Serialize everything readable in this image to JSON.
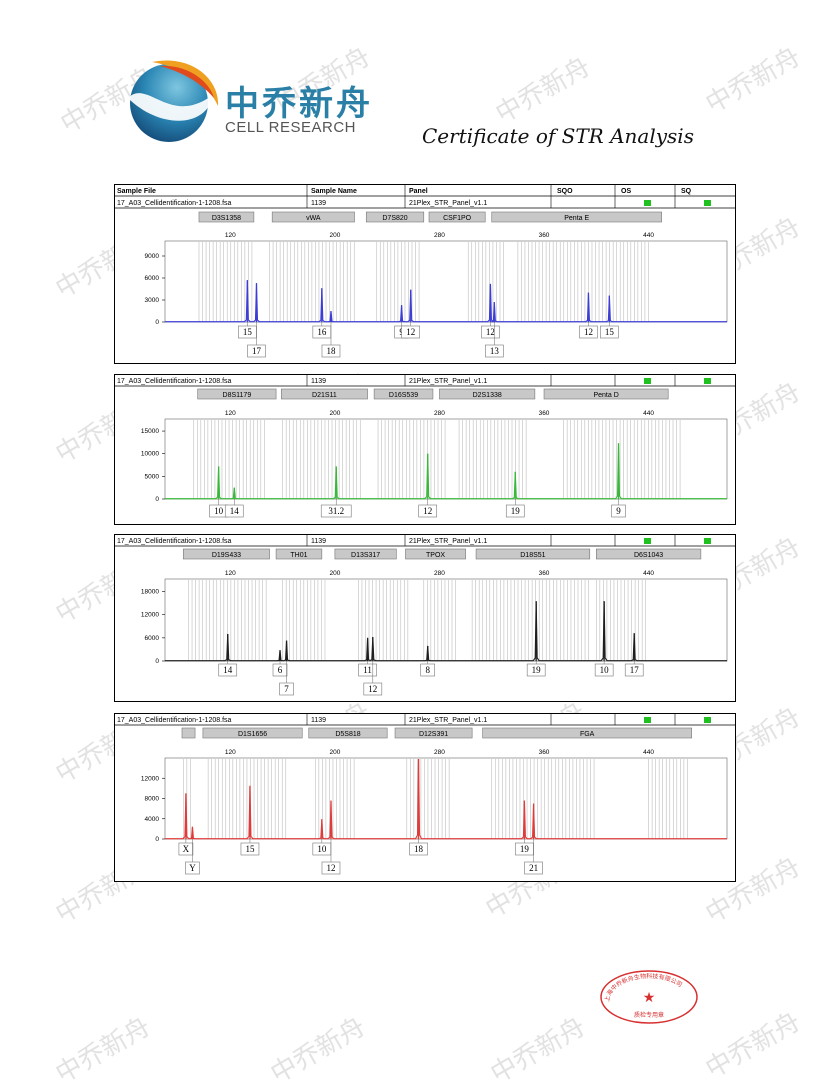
{
  "brand": {
    "name_cn": "中乔新舟",
    "name_en": "CELL RESEARCH",
    "watermark": "中乔新舟"
  },
  "certificate_title": "Certificate of STR Analysis",
  "header": {
    "sample_file": "Sample File",
    "sample_name": "Sample Name",
    "panel": "Panel",
    "sqo": "SQO",
    "os": "OS",
    "sq": "SQ"
  },
  "stamp_text": "上海中乔新舟生物科技有限公司 质检专用章",
  "chart_data": [
    {
      "type": "line",
      "color": "#3c3cd6",
      "file": "17_A03_Cellidentification-1-1208.fsa",
      "sample": "1139",
      "panel": "21Plex_STR_Panel_v1.1",
      "flags": [
        "#20c020",
        "#20c020"
      ],
      "xlim": [
        70,
        500
      ],
      "xticks": [
        120,
        200,
        280,
        360,
        440
      ],
      "ylim": [
        0,
        10500
      ],
      "yticks": [
        0,
        3000,
        6000,
        9000
      ],
      "loci": [
        {
          "name": "D3S1358",
          "x0": 96,
          "x1": 138
        },
        {
          "name": "vWA",
          "x0": 152,
          "x1": 215
        },
        {
          "name": "D7S820",
          "x0": 224,
          "x1": 268
        },
        {
          "name": "CSF1PO",
          "x0": 272,
          "x1": 315
        },
        {
          "name": "Penta E",
          "x0": 320,
          "x1": 450
        }
      ],
      "bins": [
        [
          96,
          137
        ],
        [
          150,
          216
        ],
        [
          232,
          265
        ],
        [
          302,
          329
        ],
        [
          340,
          440
        ]
      ],
      "peaks": [
        {
          "x": 133,
          "y": 5700,
          "allele": "15",
          "row": 1
        },
        {
          "x": 140,
          "y": 5300,
          "allele": "17",
          "row": 2
        },
        {
          "x": 190,
          "y": 4600,
          "allele": "16",
          "row": 1
        },
        {
          "x": 197,
          "y": 1500,
          "allele": "18",
          "row": 2
        },
        {
          "x": 251,
          "y": 2300,
          "allele": "9",
          "row": 1
        },
        {
          "x": 258,
          "y": 4400,
          "allele": "12",
          "row": 1
        },
        {
          "x": 319,
          "y": 5200,
          "allele": "12",
          "row": 1
        },
        {
          "x": 322,
          "y": 2700,
          "allele": "13",
          "row": 2
        },
        {
          "x": 394,
          "y": 4000,
          "allele": "12",
          "row": 1
        },
        {
          "x": 410,
          "y": 3600,
          "allele": "15",
          "row": 1
        }
      ]
    },
    {
      "type": "line",
      "color": "#38b838",
      "file": "17_A03_Cellidentification-1-1208.fsa",
      "sample": "1139",
      "panel": "21Plex_STR_Panel_v1.1",
      "flags": [
        "#20c020",
        "#20c020"
      ],
      "xlim": [
        70,
        500
      ],
      "xticks": [
        120,
        200,
        280,
        360,
        440
      ],
      "ylim": [
        0,
        17000
      ],
      "yticks": [
        0,
        5000,
        10000,
        15000
      ],
      "loci": [
        {
          "name": "D8S1179",
          "x0": 95,
          "x1": 155
        },
        {
          "name": "D21S11",
          "x0": 159,
          "x1": 225
        },
        {
          "name": "D16S539",
          "x0": 230,
          "x1": 275
        },
        {
          "name": "D2S1338",
          "x0": 280,
          "x1": 353
        },
        {
          "name": "Penta D",
          "x0": 360,
          "x1": 455
        }
      ],
      "bins": [
        [
          92,
          148
        ],
        [
          160,
          222
        ],
        [
          233,
          286
        ],
        [
          295,
          347
        ],
        [
          375,
          466
        ]
      ],
      "peaks": [
        {
          "x": 111,
          "y": 7200,
          "allele": "10",
          "row": 1
        },
        {
          "x": 123,
          "y": 2500,
          "allele": "14",
          "row": 1
        },
        {
          "x": 201,
          "y": 7200,
          "allele": "31.2",
          "row": 1
        },
        {
          "x": 271,
          "y": 10000,
          "allele": "12",
          "row": 1
        },
        {
          "x": 338,
          "y": 6000,
          "allele": "19",
          "row": 1
        },
        {
          "x": 417,
          "y": 12300,
          "allele": "9",
          "row": 1
        }
      ]
    },
    {
      "type": "line",
      "color": "#1e1e1e",
      "file": "17_A03_Cellidentification-1-1208.fsa",
      "sample": "1139",
      "panel": "21Plex_STR_Panel_v1.1",
      "flags": [
        "#20c020",
        "#20c020"
      ],
      "xlim": [
        70,
        500
      ],
      "xticks": [
        120,
        200,
        280,
        360,
        440
      ],
      "ylim": [
        0,
        21000
      ],
      "yticks": [
        0,
        6000,
        12000,
        18000
      ],
      "loci": [
        {
          "name": "D19S433",
          "x0": 84,
          "x1": 150
        },
        {
          "name": "TH01",
          "x0": 155,
          "x1": 190
        },
        {
          "name": "D13S317",
          "x0": 200,
          "x1": 247
        },
        {
          "name": "TPOX",
          "x0": 254,
          "x1": 300
        },
        {
          "name": "D18S51",
          "x0": 308,
          "x1": 395
        },
        {
          "name": "D6S1043",
          "x0": 400,
          "x1": 480
        }
      ],
      "bins": [
        [
          88,
          148
        ],
        [
          160,
          195
        ],
        [
          218,
          258
        ],
        [
          268,
          294
        ],
        [
          305,
          395
        ],
        [
          400,
          440
        ]
      ],
      "peaks": [
        {
          "x": 118,
          "y": 7000,
          "allele": "14",
          "row": 1
        },
        {
          "x": 158,
          "y": 2800,
          "allele": "6",
          "row": 1
        },
        {
          "x": 163,
          "y": 5300,
          "allele": "7",
          "row": 2
        },
        {
          "x": 225,
          "y": 6000,
          "allele": "11",
          "row": 1
        },
        {
          "x": 229,
          "y": 6200,
          "allele": "12",
          "row": 2
        },
        {
          "x": 271,
          "y": 3900,
          "allele": "8",
          "row": 1
        },
        {
          "x": 354,
          "y": 15500,
          "allele": "19",
          "row": 1
        },
        {
          "x": 406,
          "y": 15500,
          "allele": "10",
          "row": 1
        },
        {
          "x": 429,
          "y": 7200,
          "allele": "17",
          "row": 1
        }
      ]
    },
    {
      "type": "line",
      "color": "#e03a3a",
      "file": "17_A03_Cellidentification-1-1208.fsa",
      "sample": "1139",
      "panel": "21Plex_STR_Panel_v1.1",
      "flags": [
        "#20c020",
        "#20c020"
      ],
      "xlim": [
        70,
        500
      ],
      "xticks": [
        120,
        200,
        280,
        360,
        440
      ],
      "ylim": [
        0,
        16000
      ],
      "yticks": [
        0,
        4000,
        8000,
        12000
      ],
      "loci": [
        {
          "name": "",
          "x0": 83,
          "x1": 93
        },
        {
          "name": "D1S1656",
          "x0": 99,
          "x1": 175
        },
        {
          "name": "D5S818",
          "x0": 180,
          "x1": 240
        },
        {
          "name": "D12S391",
          "x0": 246,
          "x1": 305
        },
        {
          "name": "FGA",
          "x0": 313,
          "x1": 473
        }
      ],
      "bins": [
        [
          84,
          90
        ],
        [
          103,
          165
        ],
        [
          185,
          215
        ],
        [
          255,
          290
        ],
        [
          320,
          400
        ],
        [
          440,
          470
        ]
      ],
      "peaks": [
        {
          "x": 86,
          "y": 9000,
          "allele": "X",
          "row": 1
        },
        {
          "x": 91,
          "y": 2400,
          "allele": "Y",
          "row": 2
        },
        {
          "x": 135,
          "y": 10500,
          "allele": "15",
          "row": 1
        },
        {
          "x": 190,
          "y": 3900,
          "allele": "10",
          "row": 1
        },
        {
          "x": 197,
          "y": 7600,
          "allele": "12",
          "row": 2
        },
        {
          "x": 264,
          "y": 15800,
          "allele": "18",
          "row": 1
        },
        {
          "x": 345,
          "y": 7600,
          "allele": "19",
          "row": 1
        },
        {
          "x": 352,
          "y": 7000,
          "allele": "21",
          "row": 2
        }
      ]
    }
  ]
}
